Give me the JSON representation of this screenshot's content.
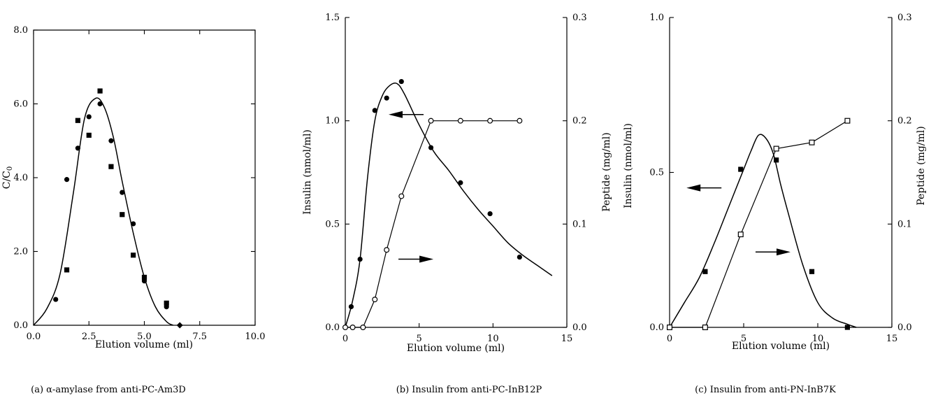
{
  "chart_data": [
    {
      "type": "scatter",
      "caption": "(a) α-amylase from anti-PC-Am3D",
      "xlabel": "Elution volume (ml)",
      "ylabel": "C/C0",
      "xlim": [
        0,
        10
      ],
      "ylim": [
        0,
        8
      ],
      "xticks": [
        "0.0",
        "2.5",
        "5.0",
        "7.5",
        "10.0"
      ],
      "yticks": [
        "0.0",
        "2.0",
        "4.0",
        "6.0",
        "8.0"
      ],
      "series": [
        {
          "marker": "filled-circle",
          "x": [
            1.0,
            1.5,
            2.0,
            2.5,
            3.0,
            3.5,
            4.0,
            4.5,
            5.0,
            6.0
          ],
          "y": [
            0.7,
            3.95,
            4.8,
            5.65,
            6.0,
            5.0,
            3.6,
            2.75,
            1.2,
            0.5
          ]
        },
        {
          "marker": "filled-square",
          "x": [
            1.5,
            2.0,
            2.5,
            3.0,
            3.5,
            4.0,
            4.5,
            5.0,
            6.0
          ],
          "y": [
            1.5,
            5.55,
            5.15,
            6.35,
            4.3,
            3.0,
            1.9,
            1.3,
            0.6
          ]
        },
        {
          "marker": "filled-diamond",
          "x": [
            6.6
          ],
          "y": [
            0.0
          ]
        },
        {
          "marker": "none",
          "style": "smooth-fit",
          "x": [
            0,
            0.6,
            1.2,
            1.8,
            2.3,
            2.8,
            3.2,
            3.6,
            4.0,
            4.5,
            5.0,
            5.5,
            6.0,
            6.3
          ],
          "y": [
            0,
            0.45,
            1.4,
            3.6,
            5.6,
            6.15,
            5.9,
            5.1,
            3.9,
            2.5,
            1.3,
            0.5,
            0.1,
            0
          ]
        }
      ]
    },
    {
      "type": "line",
      "caption": "(b) Insulin from anti-PC-InB12P",
      "xlabel": "Elution volume (ml)",
      "ylabel": "Insulin (nmol/ml)",
      "ylabel_right": "Peptide (mg/ml)",
      "xlim": [
        0,
        15
      ],
      "ylim": [
        0,
        1.5
      ],
      "ylim_right": [
        0,
        0.3
      ],
      "xticks": [
        "0",
        "5",
        "10",
        "15"
      ],
      "yticks": [
        "0.0",
        "0.5",
        "1.0",
        "1.5"
      ],
      "yticks_right": [
        "0.0",
        "0.1",
        "0.2",
        "0.3"
      ],
      "series": [
        {
          "marker": "filled-circle",
          "axis": "left",
          "x": [
            0.4,
            1.0,
            2.0,
            2.8,
            3.8,
            5.8,
            7.8,
            9.8,
            11.8
          ],
          "y": [
            0.1,
            0.33,
            1.05,
            1.11,
            1.19,
            0.87,
            0.7,
            0.55,
            0.34
          ]
        },
        {
          "marker": "none",
          "axis": "left",
          "style": "smooth-fit",
          "x": [
            0,
            0.5,
            1.0,
            1.5,
            2.0,
            2.5,
            3.0,
            3.5,
            4.0,
            5.0,
            6.0,
            7.0,
            8.0,
            9.0,
            10.0,
            11.0,
            12.0,
            13.0,
            14.0
          ],
          "y": [
            0,
            0.13,
            0.33,
            0.72,
            1.0,
            1.12,
            1.17,
            1.18,
            1.13,
            0.98,
            0.85,
            0.76,
            0.66,
            0.57,
            0.49,
            0.41,
            0.35,
            0.3,
            0.25
          ]
        },
        {
          "marker": "open-circle",
          "axis": "right",
          "x": [
            0,
            0.5,
            1.2,
            2.0,
            2.8,
            3.8,
            5.8,
            7.8,
            9.8,
            11.8
          ],
          "y": [
            0,
            0,
            0,
            0.027,
            0.075,
            0.127,
            0.2,
            0.2,
            0.2,
            0.2
          ]
        }
      ],
      "annotations": [
        {
          "type": "arrow",
          "direction": "left",
          "target_axis": "left",
          "x": 5.3,
          "y": 1.03
        },
        {
          "type": "arrow",
          "direction": "right",
          "target_axis": "right",
          "x": 3.6,
          "y": 0.066
        }
      ]
    },
    {
      "type": "line",
      "caption": "(c) Insulin from anti-PN-InB7K",
      "xlabel": "Elution volume (ml)",
      "ylabel": "Insulin (nmol/ml)",
      "ylabel_right": "Peptide (mg/ml)",
      "xlim": [
        0,
        15
      ],
      "ylim": [
        0,
        1.0
      ],
      "ylim_right": [
        0,
        0.3
      ],
      "xticks": [
        "0",
        "5",
        "10",
        "15"
      ],
      "yticks": [
        "0.0",
        "0.5",
        "1.0"
      ],
      "yticks_right": [
        "0.0",
        "0.1",
        "0.2",
        "0.3"
      ],
      "series": [
        {
          "marker": "filled-square",
          "axis": "left",
          "x": [
            2.4,
            4.8,
            7.2,
            9.6,
            12.0
          ],
          "y": [
            0.18,
            0.51,
            0.54,
            0.18,
            0.0
          ]
        },
        {
          "marker": "none",
          "axis": "left",
          "style": "smooth-fit",
          "x": [
            0,
            1,
            2,
            3,
            4,
            5,
            5.5,
            6,
            6.5,
            7,
            7.5,
            8,
            9,
            10,
            11,
            12,
            12.6
          ],
          "y": [
            0,
            0.08,
            0.16,
            0.27,
            0.39,
            0.51,
            0.57,
            0.62,
            0.61,
            0.56,
            0.46,
            0.37,
            0.2,
            0.08,
            0.03,
            0.01,
            0
          ]
        },
        {
          "marker": "open-square",
          "axis": "right",
          "x": [
            0,
            2.4,
            4.8,
            7.2,
            9.6,
            12.0
          ],
          "y": [
            0,
            0,
            0.09,
            0.173,
            0.179,
            0.2
          ]
        }
      ],
      "annotations": [
        {
          "type": "arrow",
          "direction": "left",
          "target_axis": "left",
          "x": 3.5,
          "y": 0.45
        },
        {
          "type": "arrow",
          "direction": "right",
          "target_axis": "right",
          "x": 5.8,
          "y": 0.073
        }
      ]
    }
  ]
}
